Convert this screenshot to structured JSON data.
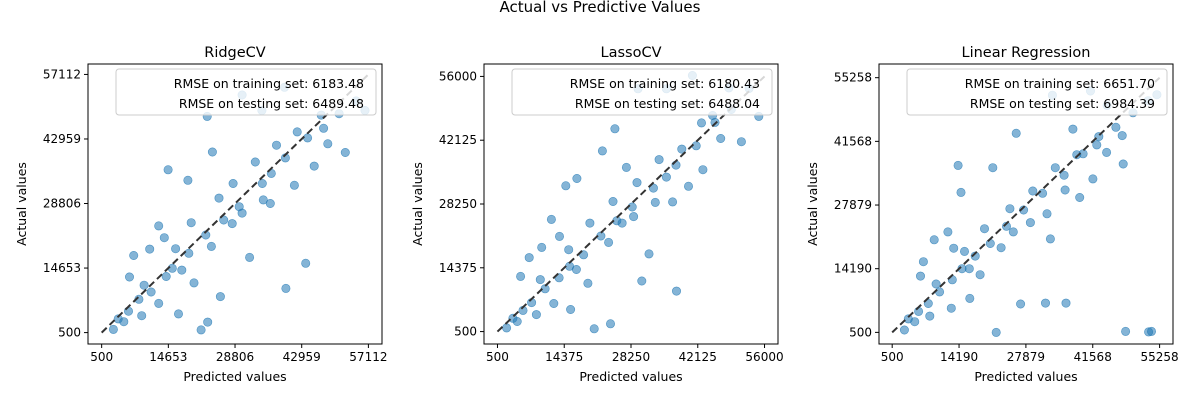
{
  "figure": {
    "suptitle": "Actual vs Predictive Values"
  },
  "colors": {
    "points": "#1f77b4",
    "diagonal": "#333333",
    "legend_border": "#cccccc"
  },
  "chart_data": [
    {
      "type": "scatter",
      "title": "RidgeCV",
      "xlabel": "Predicted values",
      "ylabel": "Actual values",
      "xlim": [
        -2400,
        60000
      ],
      "ylim": [
        -2000,
        59400
      ],
      "ticks": [
        500,
        14653,
        28806,
        42959,
        57112
      ],
      "diagonal": [
        [
          500,
          500
        ],
        [
          57112,
          57112
        ]
      ],
      "legend": {
        "location": "top-right",
        "entries": [
          "RMSE on training set: 6183.48",
          "RMSE on testing set: 6489.48"
        ]
      },
      "points": [
        [
          3000,
          1200
        ],
        [
          5200,
          2900
        ],
        [
          8400,
          7800
        ],
        [
          11000,
          9400
        ],
        [
          14200,
          12800
        ],
        [
          15500,
          14600
        ],
        [
          19000,
          17900
        ],
        [
          22600,
          21900
        ],
        [
          26400,
          25200
        ],
        [
          29700,
          28100
        ],
        [
          34600,
          33200
        ],
        [
          39500,
          38800
        ],
        [
          44200,
          43200
        ],
        [
          47600,
          45300
        ],
        [
          50900,
          48500
        ],
        [
          54500,
          51300
        ],
        [
          56400,
          49200
        ],
        [
          6400,
          12700
        ],
        [
          12600,
          23900
        ],
        [
          18800,
          33900
        ],
        [
          24000,
          40100
        ],
        [
          22900,
          47900
        ],
        [
          34500,
          49200
        ],
        [
          30300,
          52600
        ],
        [
          39300,
          54300
        ],
        [
          14600,
          36200
        ],
        [
          10700,
          18800
        ],
        [
          16800,
          4600
        ],
        [
          25700,
          8400
        ],
        [
          23000,
          2800
        ],
        [
          39600,
          10200
        ],
        [
          43800,
          15700
        ],
        [
          31900,
          17000
        ],
        [
          20100,
          11400
        ],
        [
          9000,
          4200
        ],
        [
          12600,
          6900
        ],
        [
          21600,
          1100
        ],
        [
          7300,
          17400
        ],
        [
          13800,
          21300
        ],
        [
          28200,
          24400
        ],
        [
          34800,
          29600
        ],
        [
          36500,
          35400
        ],
        [
          41400,
          32800
        ],
        [
          45600,
          37000
        ],
        [
          48500,
          41900
        ],
        [
          52200,
          40000
        ],
        [
          47100,
          48200
        ],
        [
          42000,
          44500
        ],
        [
          37600,
          41600
        ],
        [
          33100,
          37900
        ],
        [
          28400,
          33200
        ],
        [
          25400,
          30000
        ],
        [
          19500,
          24600
        ],
        [
          16200,
          18900
        ],
        [
          9500,
          10900
        ],
        [
          6200,
          5200
        ],
        [
          4000,
          3500
        ],
        [
          17500,
          14200
        ],
        [
          23800,
          19400
        ],
        [
          30300,
          26700
        ],
        [
          36300,
          28800
        ]
      ]
    },
    {
      "type": "scatter",
      "title": "LassoCV",
      "xlabel": "Predicted values",
      "ylabel": "Actual values",
      "xlim": [
        -2300,
        58800
      ],
      "ylim": [
        -2200,
        58700
      ],
      "ticks": [
        500,
        14375,
        28250,
        42125,
        56000
      ],
      "diagonal": [
        [
          500,
          500
        ],
        [
          56000,
          56000
        ]
      ],
      "legend": {
        "location": "top-right",
        "entries": [
          "RMSE on training set: 6180.43",
          "RMSE on testing set: 6488.04"
        ]
      },
      "points": [
        [
          2400,
          1300
        ],
        [
          4600,
          2700
        ],
        [
          7600,
          6800
        ],
        [
          10400,
          9800
        ],
        [
          13300,
          12200
        ],
        [
          15500,
          14700
        ],
        [
          18400,
          17200
        ],
        [
          22000,
          21300
        ],
        [
          25300,
          24600
        ],
        [
          28500,
          27600
        ],
        [
          32900,
          31700
        ],
        [
          37600,
          36700
        ],
        [
          41800,
          40900
        ],
        [
          45700,
          46000
        ],
        [
          49100,
          48800
        ],
        [
          52800,
          53400
        ],
        [
          54800,
          47300
        ],
        [
          5300,
          12500
        ],
        [
          11700,
          24900
        ],
        [
          17000,
          33800
        ],
        [
          22300,
          39800
        ],
        [
          24900,
          44600
        ],
        [
          35600,
          53300
        ],
        [
          29700,
          53300
        ],
        [
          41000,
          56200
        ],
        [
          14700,
          32200
        ],
        [
          9700,
          18800
        ],
        [
          15700,
          5300
        ],
        [
          24000,
          2200
        ],
        [
          20600,
          1100
        ],
        [
          37700,
          9300
        ],
        [
          32000,
          17400
        ],
        [
          30500,
          11500
        ],
        [
          19300,
          11000
        ],
        [
          8600,
          4200
        ],
        [
          12200,
          6600
        ],
        [
          7100,
          16600
        ],
        [
          13400,
          21200
        ],
        [
          26400,
          24100
        ],
        [
          33300,
          28600
        ],
        [
          35600,
          34100
        ],
        [
          40200,
          32100
        ],
        [
          43200,
          35700
        ],
        [
          46900,
          42500
        ],
        [
          51200,
          41800
        ],
        [
          45200,
          47500
        ],
        [
          38800,
          40200
        ],
        [
          34100,
          37900
        ],
        [
          29500,
          32900
        ],
        [
          24500,
          28800
        ],
        [
          19700,
          24100
        ],
        [
          15300,
          18300
        ],
        [
          9400,
          11800
        ],
        [
          5800,
          5100
        ],
        [
          3700,
          3400
        ],
        [
          16900,
          14000
        ],
        [
          23600,
          19900
        ],
        [
          28800,
          25500
        ],
        [
          36900,
          28700
        ],
        [
          42900,
          45900
        ],
        [
          48600,
          53500
        ],
        [
          27300,
          36200
        ]
      ]
    },
    {
      "type": "scatter",
      "title": "Linear Regression",
      "xlabel": "Predicted values",
      "ylabel": "Actual values",
      "xlim": [
        -2200,
        58000
      ],
      "ylim": [
        -2000,
        58200
      ],
      "ticks": [
        500,
        14190,
        27879,
        41568,
        55258
      ],
      "diagonal": [
        [
          500,
          500
        ],
        [
          55258,
          55258
        ]
      ],
      "legend": {
        "location": "top-right",
        "entries": [
          "RMSE on training set: 6651.70",
          "RMSE on testing set: 6984.39"
        ]
      },
      "points": [
        [
          3000,
          1000
        ],
        [
          5100,
          2800
        ],
        [
          7900,
          6700
        ],
        [
          10200,
          9200
        ],
        [
          12800,
          11800
        ],
        [
          14800,
          14200
        ],
        [
          17500,
          16900
        ],
        [
          20600,
          19600
        ],
        [
          23900,
          23300
        ],
        [
          27400,
          26800
        ],
        [
          31300,
          30400
        ],
        [
          35700,
          34300
        ],
        [
          39600,
          38900
        ],
        [
          42400,
          40800
        ],
        [
          46300,
          44600
        ],
        [
          49800,
          47700
        ],
        [
          52900,
          50300
        ],
        [
          54700,
          51600
        ],
        [
          6300,
          12600
        ],
        [
          11900,
          22100
        ],
        [
          14600,
          30600
        ],
        [
          21100,
          35900
        ],
        [
          25900,
          43300
        ],
        [
          37500,
          44200
        ],
        [
          33300,
          51500
        ],
        [
          41100,
          52400
        ],
        [
          47600,
          42800
        ],
        [
          14000,
          36400
        ],
        [
          9100,
          20400
        ],
        [
          16400,
          7800
        ],
        [
          21800,
          500
        ],
        [
          26800,
          6600
        ],
        [
          31900,
          6800
        ],
        [
          36100,
          6800
        ],
        [
          48300,
          700
        ],
        [
          53600,
          700
        ],
        [
          53000,
          600
        ],
        [
          18500,
          12900
        ],
        [
          8200,
          4000
        ],
        [
          12600,
          5700
        ],
        [
          6900,
          15700
        ],
        [
          13100,
          18600
        ],
        [
          25300,
          22100
        ],
        [
          32200,
          26000
        ],
        [
          35900,
          31100
        ],
        [
          38900,
          29500
        ],
        [
          41600,
          33500
        ],
        [
          44400,
          39200
        ],
        [
          47800,
          36700
        ],
        [
          42800,
          42600
        ],
        [
          38300,
          38700
        ],
        [
          33900,
          35900
        ],
        [
          29300,
          30900
        ],
        [
          24600,
          27100
        ],
        [
          19400,
          22800
        ],
        [
          15300,
          17900
        ],
        [
          9500,
          10900
        ],
        [
          5900,
          5000
        ],
        [
          3800,
          3400
        ],
        [
          16300,
          14200
        ],
        [
          22800,
          18700
        ],
        [
          28800,
          24100
        ],
        [
          32900,
          20600
        ],
        [
          44500,
          49300
        ]
      ]
    }
  ]
}
